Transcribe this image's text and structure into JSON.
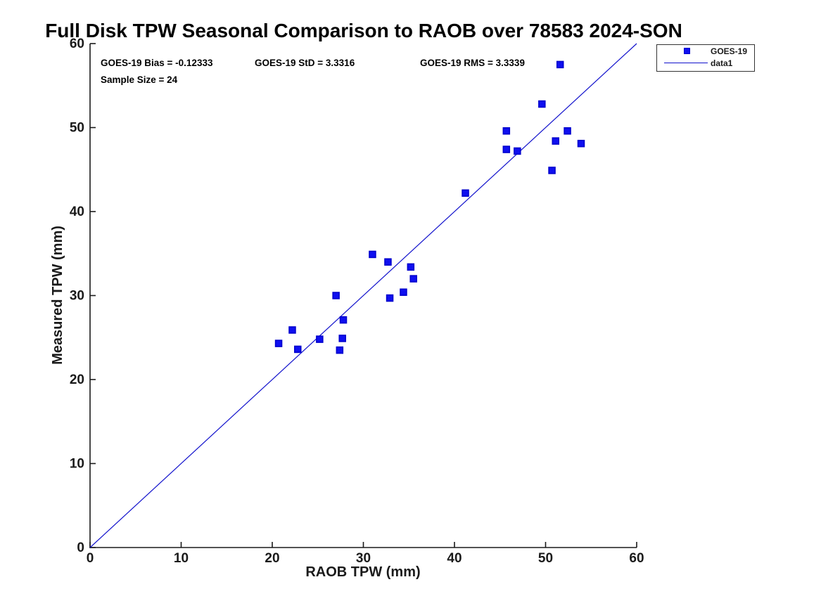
{
  "figure": {
    "title": "Full Disk TPW Seasonal Comparison to RAOB over 78583 2024-SON"
  },
  "annotations": {
    "bias_label": "GOES-19 Bias = -0.12333",
    "std_label": "GOES-19 StD = 3.3316",
    "rms_label": "GOES-19 RMS = 3.3339",
    "sample_size_label": "Sample Size = 24"
  },
  "legend": {
    "entries": [
      {
        "label": "GOES-19",
        "type": "marker"
      },
      {
        "label": "data1",
        "type": "line"
      }
    ]
  },
  "colors": {
    "marker_fill": "#0f0ff0",
    "marker_edge": "#0000cc",
    "line_color": "#1111cc",
    "axis_color": "#1a1a1a"
  },
  "chart_data": {
    "type": "scatter",
    "title": "Full Disk TPW Seasonal Comparison to RAOB over 78583 2024-SON",
    "xlabel": "RAOB TPW (mm)",
    "ylabel": "Measured TPW (mm)",
    "xlim": [
      0,
      60
    ],
    "ylim": [
      0,
      60
    ],
    "xticks": [
      0,
      10,
      20,
      30,
      40,
      50,
      60
    ],
    "yticks": [
      0,
      10,
      20,
      30,
      40,
      50,
      60
    ],
    "grid": false,
    "legend_position": "top-right-outside",
    "stats": {
      "bias": -0.12333,
      "std": 3.3316,
      "rms": 3.3339,
      "sample_size": 24
    },
    "series": [
      {
        "name": "GOES-19",
        "type": "scatter",
        "marker": "square",
        "points": [
          [
            20.7,
            24.3
          ],
          [
            22.2,
            25.9
          ],
          [
            22.8,
            23.6
          ],
          [
            25.2,
            24.8
          ],
          [
            27.0,
            30.0
          ],
          [
            27.4,
            23.5
          ],
          [
            27.7,
            24.9
          ],
          [
            27.8,
            27.1
          ],
          [
            31.0,
            34.9
          ],
          [
            32.7,
            34.0
          ],
          [
            32.9,
            29.7
          ],
          [
            34.4,
            30.4
          ],
          [
            35.2,
            33.4
          ],
          [
            35.5,
            32.0
          ],
          [
            41.2,
            42.2
          ],
          [
            45.7,
            47.4
          ],
          [
            45.7,
            49.6
          ],
          [
            46.9,
            47.2
          ],
          [
            49.6,
            52.8
          ],
          [
            50.7,
            44.9
          ],
          [
            51.1,
            48.4
          ],
          [
            51.6,
            57.5
          ],
          [
            52.4,
            49.6
          ],
          [
            53.9,
            48.1
          ]
        ]
      },
      {
        "name": "data1",
        "type": "line",
        "points": [
          [
            0,
            0
          ],
          [
            60,
            60
          ]
        ]
      }
    ]
  }
}
